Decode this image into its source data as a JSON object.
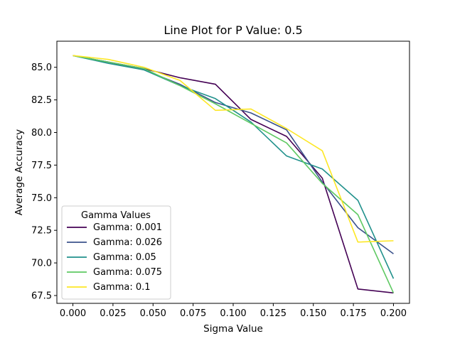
{
  "chart_data": {
    "type": "line",
    "title": "Line Plot for P Value: 0.5",
    "xlabel": "Sigma Value",
    "ylabel": "Average Accuracy",
    "xlim": [
      -0.01,
      0.21
    ],
    "ylim": [
      66.9,
      87.0
    ],
    "xticks": [
      0.0,
      0.025,
      0.05,
      0.075,
      0.1,
      0.125,
      0.15,
      0.175,
      0.2
    ],
    "xtick_labels": [
      "0.000",
      "0.025",
      "0.050",
      "0.075",
      "0.100",
      "0.125",
      "0.150",
      "0.175",
      "0.200"
    ],
    "yticks": [
      67.5,
      70.0,
      72.5,
      75.0,
      77.5,
      80.0,
      82.5,
      85.0
    ],
    "ytick_labels": [
      "67.5",
      "70.0",
      "72.5",
      "75.0",
      "77.5",
      "80.0",
      "82.5",
      "85.0"
    ],
    "grid": false,
    "legend_title": "Gamma Values",
    "legend_position": "lower-left",
    "x": [
      0.0,
      0.0222,
      0.0444,
      0.0667,
      0.0889,
      0.1111,
      0.1333,
      0.1556,
      0.1778,
      0.2
    ],
    "series": [
      {
        "name": "Gamma: 0.001",
        "color": "#440154",
        "values": [
          85.9,
          85.4,
          84.9,
          84.2,
          83.7,
          81.0,
          79.7,
          76.5,
          68.0,
          67.7
        ]
      },
      {
        "name": "Gamma: 0.026",
        "color": "#3b528b",
        "values": [
          85.9,
          85.4,
          84.8,
          83.7,
          82.3,
          81.5,
          80.2,
          76.2,
          72.7,
          70.7
        ]
      },
      {
        "name": "Gamma: 0.05",
        "color": "#21918c",
        "values": [
          85.9,
          85.3,
          84.8,
          83.6,
          82.6,
          80.8,
          78.2,
          77.2,
          74.8,
          68.8
        ]
      },
      {
        "name": "Gamma: 0.075",
        "color": "#5ec962",
        "values": [
          85.9,
          85.4,
          84.9,
          83.6,
          82.2,
          80.7,
          79.2,
          76.1,
          73.7,
          67.7
        ]
      },
      {
        "name": "Gamma: 0.1",
        "color": "#fde725",
        "values": [
          85.9,
          85.6,
          85.0,
          84.0,
          81.7,
          81.8,
          80.3,
          78.6,
          71.6,
          71.7
        ]
      }
    ]
  }
}
